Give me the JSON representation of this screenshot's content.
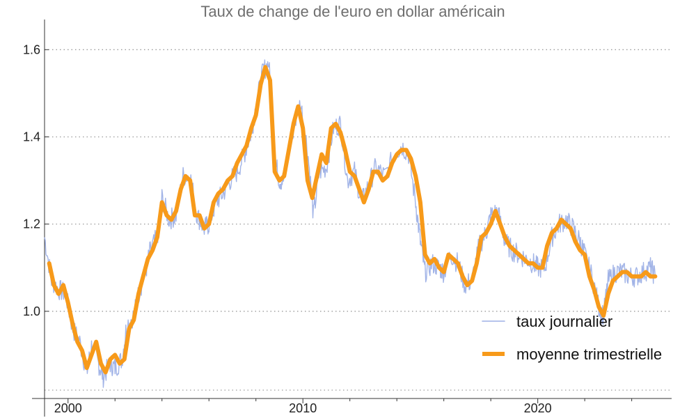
{
  "chart_data": {
    "type": "line",
    "title": "Taux de change de l'euro en dollar américain",
    "xlabel": "",
    "ylabel": "",
    "xlim": [
      1999.0,
      2025.7
    ],
    "ylim": [
      0.8,
      1.65
    ],
    "y_ticks": [
      1.0,
      1.2,
      1.4,
      1.6
    ],
    "y_tick_labels": [
      "1.0",
      "1.2",
      "1.4",
      "1.6"
    ],
    "x_label_ticks": [
      2000,
      2010,
      2020
    ],
    "x_label_texts": [
      "2000",
      "2010",
      "2020"
    ],
    "x_minor_ticks": [
      2002,
      2004,
      2006,
      2008,
      2012,
      2014,
      2016,
      2018,
      2022,
      2024
    ],
    "grid": "horizontal dotted",
    "legend_position": "bottom-right",
    "series": [
      {
        "name": "taux journalier",
        "color": "#9db0e6",
        "style": "thin noisy",
        "x": [
          1999.0,
          1999.3,
          1999.6,
          1999.9,
          2000.2,
          2000.5,
          2000.8,
          2001.0,
          2001.3,
          2001.5,
          2001.8,
          2002.0,
          2002.3,
          2002.5,
          2002.8,
          2003.0,
          2003.3,
          2003.5,
          2003.8,
          2004.0,
          2004.3,
          2004.6,
          2004.9,
          2005.2,
          2005.5,
          2005.8,
          2006.0,
          2006.3,
          2006.6,
          2006.9,
          2007.2,
          2007.5,
          2007.8,
          2008.0,
          2008.3,
          2008.55,
          2008.8,
          2009.0,
          2009.2,
          2009.5,
          2009.9,
          2010.2,
          2010.45,
          2010.7,
          2011.0,
          2011.3,
          2011.6,
          2011.9,
          2012.2,
          2012.5,
          2012.8,
          2013.1,
          2013.5,
          2013.9,
          2014.2,
          2014.5,
          2014.8,
          2015.0,
          2015.2,
          2015.5,
          2015.8,
          2016.0,
          2016.3,
          2016.6,
          2016.9,
          2017.2,
          2017.5,
          2017.8,
          2018.0,
          2018.3,
          2018.6,
          2018.9,
          2019.2,
          2019.5,
          2019.8,
          2020.0,
          2020.3,
          2020.6,
          2020.9,
          2021.2,
          2021.5,
          2021.8,
          2022.0,
          2022.3,
          2022.6,
          2022.8,
          2023.0,
          2023.3,
          2023.6,
          2023.9,
          2024.2,
          2024.5,
          2024.8,
          2025.0
        ],
        "values": [
          1.17,
          1.07,
          1.05,
          1.04,
          0.96,
          0.93,
          0.86,
          0.92,
          0.88,
          0.85,
          0.88,
          0.87,
          0.89,
          0.97,
          0.99,
          1.04,
          1.09,
          1.14,
          1.17,
          1.26,
          1.21,
          1.22,
          1.31,
          1.31,
          1.22,
          1.19,
          1.2,
          1.25,
          1.27,
          1.3,
          1.32,
          1.36,
          1.41,
          1.47,
          1.55,
          1.57,
          1.35,
          1.3,
          1.3,
          1.4,
          1.48,
          1.37,
          1.22,
          1.32,
          1.33,
          1.42,
          1.43,
          1.3,
          1.32,
          1.25,
          1.29,
          1.33,
          1.31,
          1.36,
          1.38,
          1.36,
          1.25,
          1.16,
          1.09,
          1.11,
          1.1,
          1.09,
          1.13,
          1.11,
          1.06,
          1.07,
          1.15,
          1.18,
          1.22,
          1.23,
          1.16,
          1.14,
          1.13,
          1.12,
          1.11,
          1.1,
          1.1,
          1.17,
          1.2,
          1.21,
          1.19,
          1.16,
          1.13,
          1.08,
          1.01,
          0.99,
          1.07,
          1.09,
          1.09,
          1.08,
          1.08,
          1.09,
          1.1,
          1.08
        ]
      },
      {
        "name": "moyenne trimestrielle",
        "color": "#f79a1a",
        "style": "thick",
        "x": [
          1999.2,
          1999.4,
          1999.6,
          1999.8,
          2000.0,
          2000.2,
          2000.4,
          2000.6,
          2000.8,
          2001.0,
          2001.2,
          2001.4,
          2001.6,
          2001.8,
          2002.0,
          2002.2,
          2002.4,
          2002.6,
          2002.8,
          2003.0,
          2003.2,
          2003.4,
          2003.6,
          2003.8,
          2004.0,
          2004.2,
          2004.4,
          2004.6,
          2004.8,
          2005.0,
          2005.2,
          2005.4,
          2005.6,
          2005.8,
          2006.0,
          2006.2,
          2006.4,
          2006.6,
          2006.8,
          2007.0,
          2007.2,
          2007.4,
          2007.6,
          2007.8,
          2008.0,
          2008.2,
          2008.4,
          2008.6,
          2008.8,
          2009.0,
          2009.2,
          2009.4,
          2009.6,
          2009.8,
          2010.0,
          2010.2,
          2010.4,
          2010.6,
          2010.8,
          2011.0,
          2011.2,
          2011.4,
          2011.6,
          2011.8,
          2012.0,
          2012.2,
          2012.4,
          2012.6,
          2012.8,
          2013.0,
          2013.2,
          2013.4,
          2013.6,
          2013.8,
          2014.0,
          2014.2,
          2014.4,
          2014.6,
          2014.8,
          2015.0,
          2015.2,
          2015.4,
          2015.6,
          2015.8,
          2016.0,
          2016.2,
          2016.4,
          2016.6,
          2016.8,
          2017.0,
          2017.2,
          2017.4,
          2017.6,
          2017.8,
          2018.0,
          2018.2,
          2018.4,
          2018.6,
          2018.8,
          2019.0,
          2019.2,
          2019.4,
          2019.6,
          2019.8,
          2020.0,
          2020.2,
          2020.4,
          2020.6,
          2020.8,
          2021.0,
          2021.2,
          2021.4,
          2021.6,
          2021.8,
          2022.0,
          2022.2,
          2022.4,
          2022.6,
          2022.8,
          2023.0,
          2023.2,
          2023.4,
          2023.6,
          2023.8,
          2024.0,
          2024.2,
          2024.4,
          2024.6,
          2024.8,
          2025.0
        ],
        "values": [
          1.11,
          1.06,
          1.04,
          1.06,
          1.02,
          0.97,
          0.93,
          0.91,
          0.87,
          0.9,
          0.93,
          0.88,
          0.86,
          0.89,
          0.9,
          0.88,
          0.89,
          0.96,
          0.98,
          1.04,
          1.08,
          1.12,
          1.14,
          1.17,
          1.25,
          1.22,
          1.21,
          1.23,
          1.28,
          1.31,
          1.3,
          1.22,
          1.22,
          1.19,
          1.2,
          1.25,
          1.27,
          1.28,
          1.3,
          1.31,
          1.34,
          1.36,
          1.38,
          1.42,
          1.45,
          1.52,
          1.56,
          1.53,
          1.32,
          1.3,
          1.31,
          1.37,
          1.43,
          1.47,
          1.42,
          1.3,
          1.26,
          1.31,
          1.36,
          1.34,
          1.42,
          1.43,
          1.41,
          1.37,
          1.32,
          1.31,
          1.28,
          1.25,
          1.28,
          1.32,
          1.32,
          1.3,
          1.31,
          1.34,
          1.36,
          1.37,
          1.37,
          1.35,
          1.31,
          1.25,
          1.13,
          1.11,
          1.12,
          1.1,
          1.09,
          1.13,
          1.12,
          1.11,
          1.08,
          1.06,
          1.07,
          1.11,
          1.17,
          1.18,
          1.2,
          1.23,
          1.2,
          1.17,
          1.15,
          1.14,
          1.13,
          1.12,
          1.11,
          1.11,
          1.1,
          1.1,
          1.15,
          1.18,
          1.19,
          1.21,
          1.2,
          1.19,
          1.16,
          1.14,
          1.13,
          1.08,
          1.05,
          1.01,
          0.99,
          1.04,
          1.07,
          1.08,
          1.09,
          1.09,
          1.08,
          1.08,
          1.08,
          1.09,
          1.08,
          1.08
        ]
      }
    ]
  }
}
